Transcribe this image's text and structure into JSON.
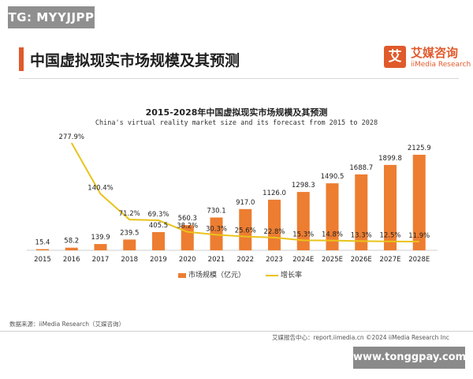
{
  "badge": "TG: MYYJJPP",
  "page_title": "中国虚拟现实市场规模及其预测",
  "logo": {
    "mark": "艾",
    "name_cn": "艾媒咨询",
    "name_en": "iiMedia Research"
  },
  "chart_data": {
    "type": "bar",
    "title": "2015-2028年中国虚拟现实市场规模及其预测",
    "subtitle": "China's virtual reality market size and its forecast from 2015 to 2028",
    "categories": [
      "2015",
      "2016",
      "2017",
      "2018",
      "2019",
      "2020",
      "2021",
      "2022",
      "2023",
      "2024E",
      "2025E",
      "2026E",
      "2027E",
      "2028E"
    ],
    "series": [
      {
        "name": "市场规模（亿元）",
        "type": "bar",
        "color": "#ed7d31",
        "values": [
          15.4,
          58.2,
          139.9,
          239.5,
          405.5,
          560.3,
          730.1,
          917.0,
          1126.0,
          1298.3,
          1490.5,
          1688.7,
          1899.8,
          2125.9
        ],
        "labels": [
          "15.4",
          "58.2",
          "139.9",
          "239.5",
          "405.5",
          "560.3",
          "730.1",
          "917.0",
          "1126.0",
          "1298.3",
          "1490.5",
          "1688.7",
          "1899.8",
          "2125.9"
        ]
      },
      {
        "name": "增长率",
        "type": "line",
        "color": "#e8c31b",
        "values": [
          null,
          277.9,
          140.4,
          71.2,
          69.3,
          38.2,
          30.3,
          25.6,
          22.8,
          15.3,
          14.8,
          13.3,
          12.5,
          11.9
        ],
        "labels": [
          "",
          "277.9%",
          "140.4%",
          "71.2%",
          "69.3%",
          "38.2%",
          "30.3%",
          "25.6%",
          "22.8%",
          "15.3%",
          "14.8%",
          "13.3%",
          "12.5%",
          "11.9%"
        ]
      }
    ],
    "legend_position": "bottom"
  },
  "source": "数据来源：iiMedia Research（艾媒咨询）",
  "footer": "艾媒报告中心：report.iimedia.cn   ©2024  iiMedia Research  Inc",
  "watermark": "www.tonggpay.com"
}
